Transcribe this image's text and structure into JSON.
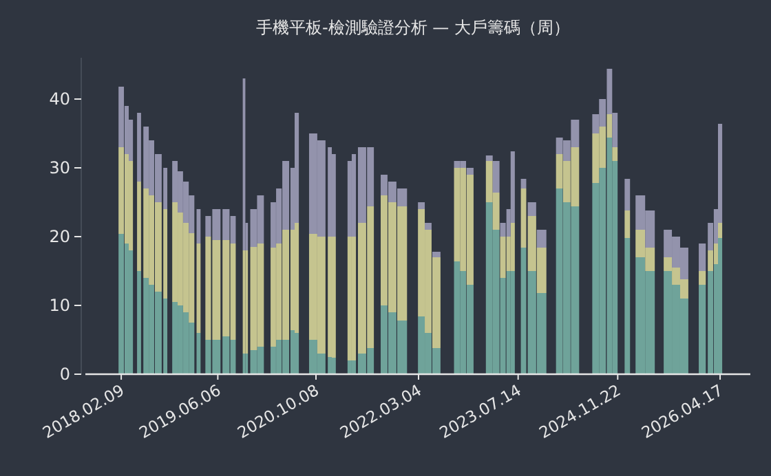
{
  "chart_data": {
    "type": "bar",
    "stacked": true,
    "title": "手機平板-檢測驗證分析 — 大戶籌碼（周）",
    "x": [
      "2018-02-09",
      "2018-03-08",
      "2018-03-29",
      "2018-04-19",
      "2018-05-09",
      "2018-06-13",
      "2018-07-10",
      "2018-08-13",
      "2018-09-17",
      "2018-10-07",
      "2018-11-04",
      "2018-12-01",
      "2018-12-29",
      "2019-01-26",
      "2019-03-02",
      "2019-03-22",
      "2019-04-19",
      "2019-05-30",
      "2019-07-17",
      "2019-08-21",
      "2019-09-17",
      "2019-10-15",
      "2019-10-28",
      "2019-12-02",
      "2020-01-05",
      "2020-02-11",
      "2020-03-09",
      "2020-04-06",
      "2020-05-10",
      "2020-06-13",
      "2020-07-04",
      "2020-08-14",
      "2020-09-24",
      "2020-11-04",
      "2020-12-16",
      "2021-01-05",
      "2021-02-09",
      "2021-03-25",
      "2021-04-15",
      "2021-05-26",
      "2021-07-07",
      "2021-08-10",
      "2021-09-13",
      "2021-10-24",
      "2021-12-12",
      "2022-02-05",
      "2022-03-18",
      "2022-04-21",
      "2022-06-01",
      "2022-07-26",
      "2022-09-12",
      "2022-10-12",
      "2022-11-16",
      "2023-01-10",
      "2023-02-20",
      "2023-03-26",
      "2023-04-29",
      "2023-05-27",
      "2023-06-17",
      "2023-07-14",
      "2023-08-10",
      "2023-09-21",
      "2023-11-08",
      "2024-01-02",
      "2024-02-05",
      "2024-03-13",
      "2024-04-23",
      "2024-06-17",
      "2024-08-04",
      "2024-09-07",
      "2024-10-12",
      "2024-11-08",
      "2024-12-13",
      "2025-01-09",
      "2025-03-15",
      "2025-05-02",
      "2025-06-19",
      "2025-07-30",
      "2025-09-09",
      "2025-10-20",
      "2025-12-14",
      "2026-01-18",
      "2026-02-28",
      "2026-03-27",
      "2026-04-17"
    ],
    "series": [
      {
        "color": "#6fa39a",
        "values": [
          20.4,
          19,
          18,
          null,
          15,
          14,
          13,
          12,
          11,
          null,
          10.5,
          10,
          9,
          7.5,
          6,
          null,
          5,
          5,
          5.5,
          5,
          null,
          3,
          3,
          3.5,
          4,
          null,
          4,
          5,
          5,
          6.4,
          6,
          null,
          5,
          3,
          2.5,
          2.4,
          null,
          2,
          2,
          3,
          3.8,
          null,
          10,
          9,
          7.8,
          null,
          8.4,
          6,
          3.8,
          null,
          16.4,
          15,
          13,
          null,
          25,
          21,
          14,
          15,
          15,
          null,
          18.4,
          15,
          11.8,
          null,
          27,
          25,
          24.4,
          null,
          27.8,
          30,
          34.4,
          31,
          null,
          19.8,
          17,
          15,
          null,
          15,
          13,
          11,
          null,
          13,
          15,
          16,
          19.8
        ]
      },
      {
        "color": "#c5c48f",
        "values": [
          12.6,
          13,
          13,
          null,
          13,
          13,
          13,
          13,
          13,
          null,
          14.5,
          13.5,
          13,
          13,
          13,
          null,
          15,
          14.5,
          14,
          14,
          null,
          15,
          15,
          15,
          15,
          null,
          14.4,
          14,
          16,
          14.6,
          16,
          null,
          15.4,
          17,
          17.5,
          17.6,
          null,
          18,
          18,
          19,
          20.6,
          null,
          16,
          16,
          16.6,
          null,
          15.6,
          15,
          13.2,
          null,
          13.6,
          15,
          16,
          null,
          6,
          5.4,
          6,
          5,
          7,
          null,
          8.6,
          8,
          6.6,
          null,
          5,
          6,
          8.6,
          null,
          7.2,
          6,
          3.4,
          2,
          null,
          4,
          4,
          3.4,
          null,
          2,
          2.5,
          2.8,
          null,
          2,
          3,
          3,
          2.2
        ]
      },
      {
        "color": "#9393ac",
        "values": [
          8.8,
          7,
          6,
          null,
          10,
          9,
          8,
          7,
          6,
          null,
          6,
          6,
          6,
          5.5,
          5,
          null,
          3,
          4.5,
          4.5,
          4,
          null,
          25,
          4,
          5.5,
          7,
          null,
          6.6,
          8,
          10,
          9,
          16,
          null,
          14.6,
          14,
          13,
          12,
          null,
          11,
          12,
          11,
          8.6,
          null,
          3,
          3,
          2.6,
          null,
          1,
          1,
          0.8,
          null,
          1,
          1,
          1,
          null,
          0.8,
          4.6,
          2,
          4,
          10.4,
          null,
          1.4,
          2,
          2.6,
          null,
          2.4,
          3,
          4,
          null,
          2.8,
          4,
          6.6,
          5,
          null,
          4.6,
          5,
          5.4,
          null,
          4,
          4.5,
          4.6,
          null,
          4,
          4,
          5,
          14.4
        ]
      }
    ],
    "xlim": [
      "2017-08-14",
      "2026-09-15"
    ],
    "xticks": [
      {
        "value": "2018-02-09",
        "label": "2018.02.09"
      },
      {
        "value": "2019-06-06",
        "label": "2019.06.06"
      },
      {
        "value": "2020-10-08",
        "label": "2020.10.08"
      },
      {
        "value": "2022-03-04",
        "label": "2022.03.04"
      },
      {
        "value": "2023-07-14",
        "label": "2023.07.14"
      },
      {
        "value": "2024-11-22",
        "label": "2024.11.22"
      },
      {
        "value": "2026-04-17",
        "label": "2026.04.17"
      }
    ],
    "ylim": [
      0,
      46
    ],
    "yticks": [
      0,
      10,
      20,
      30,
      40
    ]
  }
}
